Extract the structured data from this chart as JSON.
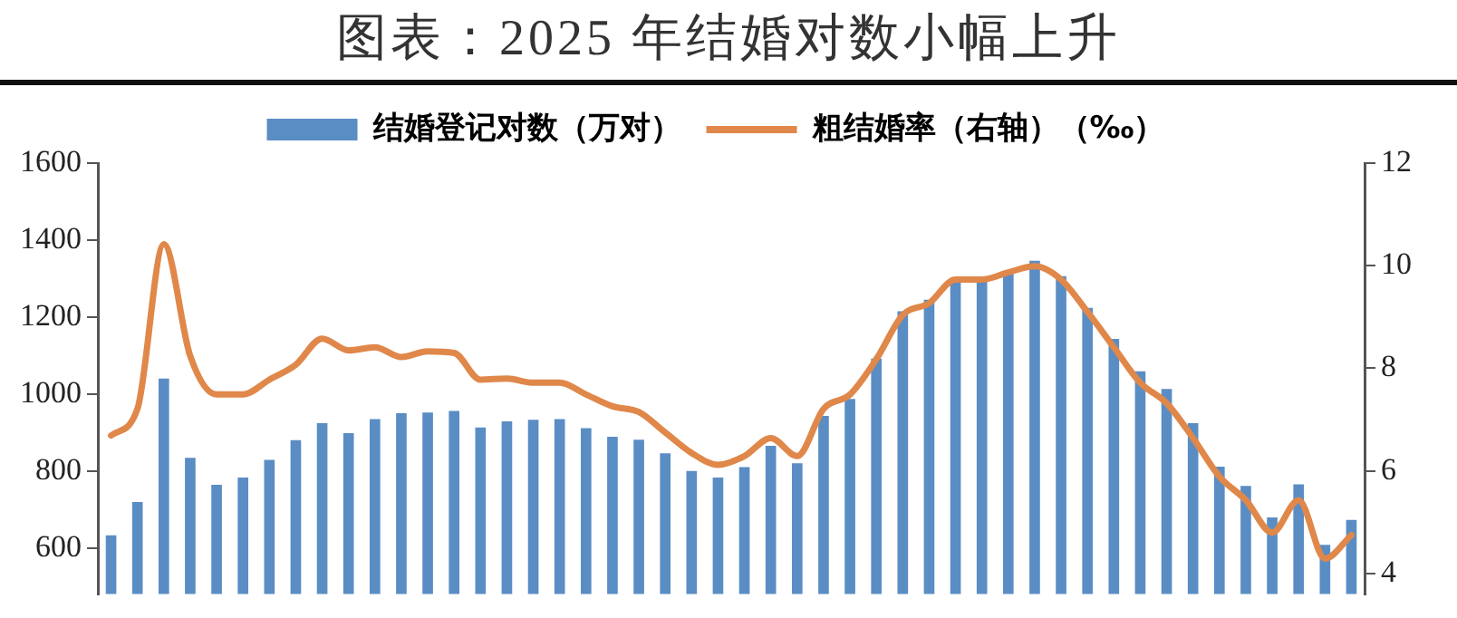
{
  "chart_data": {
    "type": "bar",
    "title": "图表：2025 年结婚对数小幅上升",
    "categories": [
      null,
      null,
      null,
      null,
      null,
      null,
      null,
      null,
      null,
      null,
      null,
      null,
      null,
      null,
      null,
      null,
      null,
      null,
      null,
      null,
      null,
      null,
      null,
      null,
      null,
      null,
      null,
      null,
      null,
      null,
      null,
      null,
      null,
      null,
      null,
      null,
      null,
      null,
      null,
      null,
      null,
      null,
      null,
      null,
      null,
      null,
      null,
      null
    ],
    "series": [
      {
        "name": "结婚登记对数（万对）",
        "color": "#5a8dc4",
        "values": [
          633,
          719,
          1040,
          834,
          764,
          783,
          829,
          880,
          924,
          898,
          935,
          950,
          952,
          956,
          913,
          929,
          933,
          935,
          911,
          889,
          881,
          846,
          800,
          783,
          810,
          865,
          820,
          943,
          987,
          1092,
          1215,
          1245,
          1296,
          1300,
          1314,
          1346,
          1306,
          1224,
          1143,
          1059,
          1013,
          924,
          811,
          761,
          679,
          765,
          608,
          673
        ]
      },
      {
        "name": "粗结婚率（右轴）（‰）",
        "type": "line",
        "axis": "y2",
        "color": "#e0874a",
        "values": [
          6.69,
          7.21,
          10.42,
          8.24,
          7.49,
          7.49,
          7.78,
          8.07,
          8.58,
          8.35,
          8.41,
          8.22,
          8.33,
          8.3,
          7.78,
          7.8,
          7.72,
          7.72,
          7.49,
          7.26,
          7.15,
          6.75,
          6.35,
          6.12,
          6.29,
          6.64,
          6.29,
          7.21,
          7.49,
          8.18,
          9.04,
          9.27,
          9.73,
          9.73,
          9.87,
          9.99,
          9.73,
          9.1,
          8.41,
          7.72,
          7.32,
          6.64,
          5.89,
          5.43,
          4.8,
          5.43,
          4.29,
          4.75
        ]
      }
    ],
    "ylim": [
      480,
      1600
    ],
    "yticks": [
      600,
      800,
      1000,
      1200,
      1400,
      1600
    ],
    "y2lim": [
      3.6,
      12
    ],
    "y2ticks": [
      4,
      6,
      8,
      10,
      12
    ],
    "tick_labels": "y",
    "grid": false,
    "legend": "top",
    "marker": "none",
    "line_style": "solid"
  }
}
